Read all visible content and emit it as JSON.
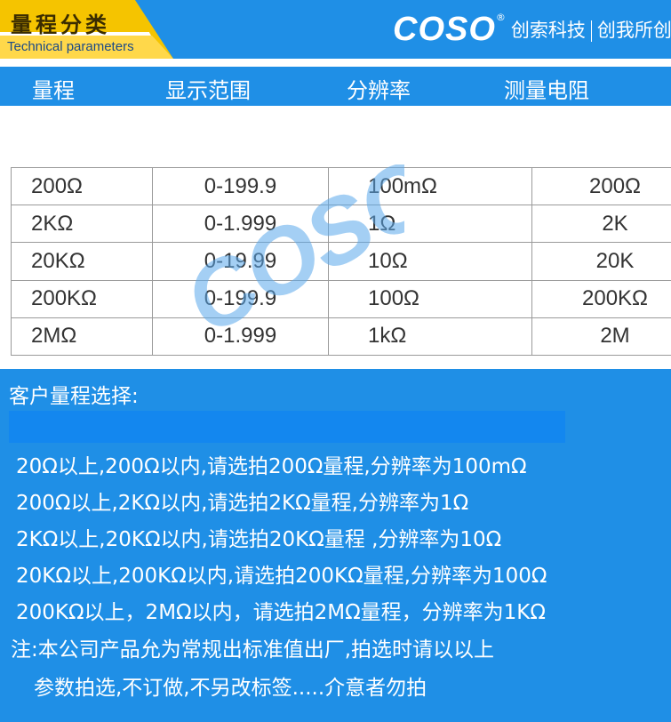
{
  "header": {
    "tag_title": "量程分类",
    "tag_subtitle": "Technical parameters",
    "logo": "COSO",
    "registered_mark": "®",
    "slogan_left": "创索科技",
    "slogan_right": "创我所创"
  },
  "columns": [
    "量程",
    "显示范围",
    "分辨率",
    "测量电阻"
  ],
  "table": {
    "rows": [
      [
        "200Ω",
        "0-199.9",
        "100mΩ",
        "200Ω"
      ],
      [
        "2KΩ",
        "0-1.999",
        "1Ω",
        "2K"
      ],
      [
        "20KΩ",
        "0-19.99",
        "10Ω",
        "20K"
      ],
      [
        "200KΩ",
        "0-199.9",
        "100Ω",
        "200KΩ"
      ],
      [
        "2MΩ",
        "0-1.999",
        "1kΩ",
        "2M"
      ]
    ]
  },
  "selection": {
    "title": "客户量程选择:",
    "rules": [
      "20Ω以上,200Ω以内,请选拍200Ω量程,分辨率为100mΩ",
      "200Ω以上,2KΩ以内,请选拍2KΩ量程,分辨率为1Ω",
      "2KΩ以上,20KΩ以内,请选拍20KΩ量程 ,分辨率为10Ω",
      "20KΩ以上,200KΩ以内,请选拍200KΩ量程,分辨率为100Ω",
      "200KΩ以上，2MΩ以内，请选拍2MΩ量程，分辨率为1KΩ"
    ],
    "note_line1": "注:本公司产品允为常规出标准值出厂,拍选时请以以上",
    "note_line2": "参数拍选,不订做,不另改标签.....介意者勿拍"
  },
  "colors": {
    "primary_blue": "#1f8fe6",
    "tag_yellow": "#f5c400",
    "tag_white": "#ffffff",
    "watermark_blue": "#5aa9ec"
  }
}
